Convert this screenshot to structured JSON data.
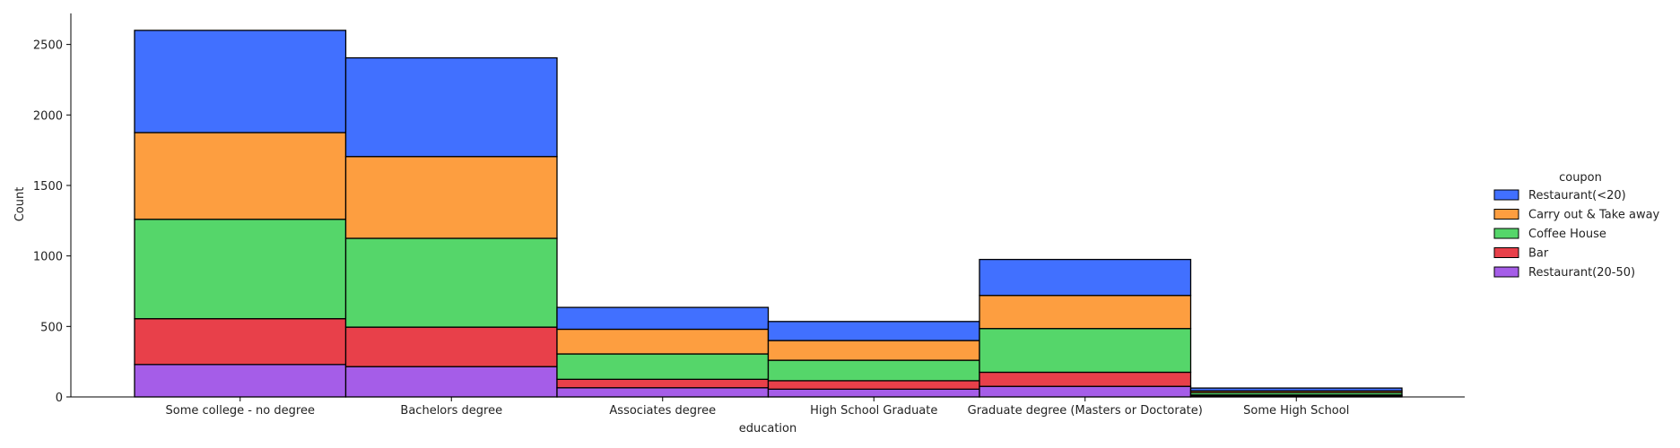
{
  "chart_data": {
    "type": "bar",
    "stacked": true,
    "title": "",
    "xlabel": "education",
    "ylabel": "Count",
    "ylim": [
      0,
      2720
    ],
    "yticks": [
      0,
      500,
      1000,
      1500,
      2000,
      2500
    ],
    "grid": false,
    "legend_title": "coupon",
    "legend_position": "right",
    "categories": [
      "Some college - no degree",
      "Bachelors degree",
      "Associates degree",
      "High School Graduate",
      "Graduate degree (Masters or Doctorate)",
      "Some High School"
    ],
    "series": [
      {
        "name": "Restaurant(20-50)",
        "color": "#a55de8",
        "values": [
          230,
          215,
          65,
          55,
          75,
          8
        ]
      },
      {
        "name": "Bar",
        "color": "#e8404a",
        "values": [
          325,
          280,
          60,
          60,
          100,
          6
        ]
      },
      {
        "name": "Coffee House",
        "color": "#55d66a",
        "values": [
          705,
          630,
          180,
          145,
          310,
          17
        ]
      },
      {
        "name": "Carry out & Take away",
        "color": "#fd9e40",
        "values": [
          615,
          580,
          175,
          140,
          235,
          12
        ]
      },
      {
        "name": "Restaurant(<20)",
        "color": "#4170ff",
        "values": [
          725,
          700,
          155,
          135,
          255,
          20
        ]
      }
    ],
    "legend_order": [
      "Restaurant(<20)",
      "Carry out & Take away",
      "Coffee House",
      "Bar",
      "Restaurant(20-50)"
    ]
  }
}
